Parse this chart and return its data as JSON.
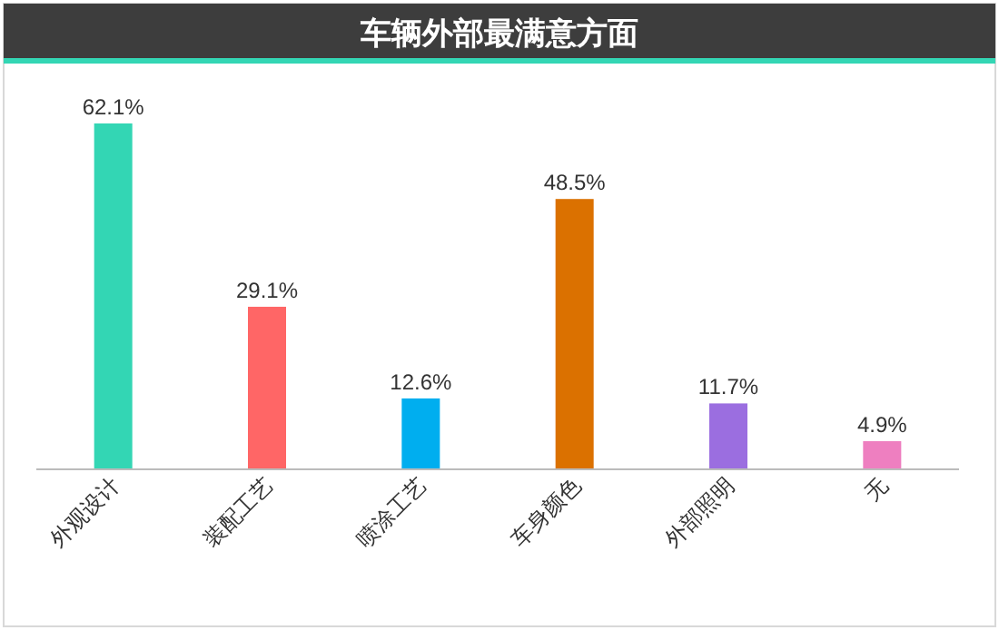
{
  "chart_data": {
    "type": "bar",
    "title": "车辆外部最满意方面",
    "categories": [
      "外观设计",
      "装配工艺",
      "喷涂工艺",
      "车身颜色",
      "外部照明",
      "无"
    ],
    "values": [
      62.1,
      29.1,
      12.6,
      48.5,
      11.7,
      4.9
    ],
    "value_labels": [
      "62.1%",
      "29.1%",
      "12.6%",
      "48.5%",
      "11.7%",
      "4.9%"
    ],
    "colors": [
      "#33d6b4",
      "#ff6666",
      "#00aeef",
      "#db7100",
      "#9b6ee0",
      "#ee7fc0"
    ]
  }
}
